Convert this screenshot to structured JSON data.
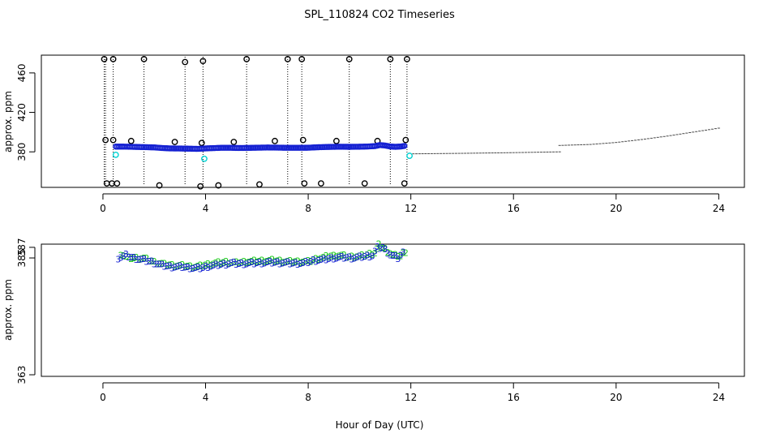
{
  "title": "SPL_110824  CO2 Timeseries",
  "xlabel": "Hour of Day (UTC)",
  "colors": {
    "raw": "#000000",
    "flagged": "#00d2d2",
    "ch1": "#1420d2",
    "ch2": "#18c818",
    "fill": "#4a4a4a"
  },
  "chart_data": [
    {
      "type": "scatter",
      "panel": "top",
      "ylabel": "approx. ppm",
      "xlim": [
        -2.4,
        25
      ],
      "ylim": [
        344,
        478
      ],
      "xticks": [
        0,
        4,
        8,
        12,
        16,
        20,
        24
      ],
      "yticks": [
        380,
        420,
        460
      ],
      "series": [
        {
          "name": "raw-outliers",
          "marker": "circle",
          "color": "#000000",
          "points": [
            [
              0.05,
              474
            ],
            [
              0.1,
              392
            ],
            [
              0.15,
              348
            ],
            [
              0.35,
              348
            ],
            [
              0.4,
              474
            ],
            [
              0.4,
              392
            ],
            [
              0.55,
              348
            ],
            [
              1.1,
              391
            ],
            [
              1.6,
              474
            ],
            [
              2.2,
              346
            ],
            [
              2.8,
              390
            ],
            [
              3.2,
              471
            ],
            [
              3.8,
              345
            ],
            [
              3.85,
              389
            ],
            [
              3.9,
              472
            ],
            [
              4.5,
              346
            ],
            [
              5.1,
              390
            ],
            [
              5.6,
              474
            ],
            [
              6.1,
              347
            ],
            [
              6.7,
              391
            ],
            [
              7.2,
              474
            ],
            [
              7.75,
              474
            ],
            [
              7.8,
              392
            ],
            [
              7.85,
              348
            ],
            [
              8.5,
              348
            ],
            [
              9.1,
              391
            ],
            [
              9.6,
              474
            ],
            [
              10.2,
              348
            ],
            [
              10.7,
              391
            ],
            [
              11.2,
              474
            ],
            [
              11.75,
              348
            ],
            [
              11.8,
              392
            ],
            [
              11.85,
              474
            ]
          ]
        },
        {
          "name": "flagged",
          "marker": "circle",
          "color": "#00d2d2",
          "points": [
            [
              0.5,
              377
            ],
            [
              3.95,
              373
            ],
            [
              11.95,
              376
            ]
          ]
        },
        {
          "name": "co2-running-mean",
          "marker": "circle",
          "color": "#1420d2",
          "points": [
            [
              0.5,
              385.3
            ],
            [
              0.8,
              385.3
            ],
            [
              1.0,
              385.2
            ],
            [
              1.3,
              385.0
            ],
            [
              1.6,
              384.8
            ],
            [
              2.0,
              384.5
            ],
            [
              2.3,
              383.9
            ],
            [
              2.6,
              383.5
            ],
            [
              3.0,
              383.4
            ],
            [
              3.4,
              383.2
            ],
            [
              3.7,
              383.0
            ],
            [
              4.0,
              383.5
            ],
            [
              4.3,
              383.8
            ],
            [
              4.6,
              384.1
            ],
            [
              5.0,
              384.1
            ],
            [
              5.3,
              383.9
            ],
            [
              5.6,
              384.0
            ],
            [
              6.0,
              384.2
            ],
            [
              6.4,
              384.4
            ],
            [
              6.8,
              384.3
            ],
            [
              7.2,
              384.1
            ],
            [
              7.6,
              384.1
            ],
            [
              8.0,
              384.2
            ],
            [
              8.4,
              384.7
            ],
            [
              8.8,
              385.0
            ],
            [
              9.2,
              385.2
            ],
            [
              9.6,
              385.1
            ],
            [
              10.0,
              385.2
            ],
            [
              10.3,
              385.4
            ],
            [
              10.6,
              385.8
            ],
            [
              10.8,
              386.9
            ],
            [
              11.0,
              386.4
            ],
            [
              11.2,
              385.4
            ],
            [
              11.4,
              385.1
            ],
            [
              11.6,
              385.4
            ],
            [
              11.75,
              386.0
            ]
          ]
        },
        {
          "name": "projected",
          "marker": "dash",
          "color": "#4a4a4a",
          "points": [
            [
              12.1,
              378
            ],
            [
              14,
              378.5
            ],
            [
              16,
              379.2
            ],
            [
              17.8,
              380
            ],
            [
              17.8,
              386.5
            ],
            [
              19,
              387.5
            ],
            [
              20,
              389.5
            ],
            [
              21,
              392.5
            ],
            [
              22,
              396
            ],
            [
              23,
              400
            ],
            [
              24,
              404
            ]
          ]
        }
      ],
      "vlines": [
        0.05,
        0.1,
        0.4,
        1.6,
        3.2,
        3.9,
        5.6,
        7.2,
        7.75,
        9.6,
        11.2,
        11.85
      ]
    },
    {
      "type": "scatter",
      "panel": "bottom",
      "ylabel": "approx. ppm",
      "xlim": [
        -2.4,
        25
      ],
      "ylim": [
        362.7,
        387.6
      ],
      "xticks": [
        0,
        4,
        8,
        12,
        16,
        20,
        24
      ],
      "yticks": [
        363,
        385,
        387
      ],
      "ytick_labels": [
        "363",
        "385",
        "387"
      ],
      "series": [
        {
          "name": "2",
          "marker": "2",
          "color": "#18c818",
          "points": [
            [
              0.7,
              385.8
            ],
            [
              1.0,
              385.0
            ],
            [
              1.3,
              385.0
            ],
            [
              1.6,
              384.9
            ],
            [
              2.0,
              384.2
            ],
            [
              2.4,
              383.8
            ],
            [
              2.8,
              383.6
            ],
            [
              3.2,
              383.5
            ],
            [
              3.6,
              383.3
            ],
            [
              4.0,
              383.7
            ],
            [
              4.4,
              384.0
            ],
            [
              4.8,
              384.2
            ],
            [
              5.2,
              384.1
            ],
            [
              5.6,
              384.3
            ],
            [
              6.0,
              384.4
            ],
            [
              6.4,
              384.5
            ],
            [
              6.8,
              384.5
            ],
            [
              7.2,
              384.3
            ],
            [
              7.6,
              384.3
            ],
            [
              8.0,
              384.3
            ],
            [
              8.4,
              384.9
            ],
            [
              8.8,
              385.3
            ],
            [
              9.2,
              385.5
            ],
            [
              9.6,
              385.2
            ],
            [
              10.0,
              385.3
            ],
            [
              10.3,
              385.6
            ],
            [
              10.6,
              386.0
            ],
            [
              10.75,
              387.4
            ],
            [
              11.0,
              386.7
            ],
            [
              11.3,
              385.5
            ],
            [
              11.6,
              385.4
            ],
            [
              11.8,
              386.2
            ]
          ]
        },
        {
          "name": "3",
          "marker": "3",
          "color": "#1420d2",
          "points": [
            [
              0.6,
              385.0
            ],
            [
              0.9,
              385.5
            ],
            [
              1.2,
              385.0
            ],
            [
              1.5,
              384.7
            ],
            [
              1.9,
              384.3
            ],
            [
              2.3,
              383.6
            ],
            [
              2.7,
              383.3
            ],
            [
              3.1,
              383.3
            ],
            [
              3.5,
              383.1
            ],
            [
              3.8,
              383.1
            ],
            [
              4.2,
              383.5
            ],
            [
              4.6,
              383.8
            ],
            [
              5.0,
              384.0
            ],
            [
              5.4,
              383.9
            ],
            [
              5.8,
              384.0
            ],
            [
              6.2,
              384.1
            ],
            [
              6.6,
              384.2
            ],
            [
              7.0,
              384.1
            ],
            [
              7.4,
              384.0
            ],
            [
              7.8,
              384.0
            ],
            [
              8.2,
              384.5
            ],
            [
              8.6,
              384.7
            ],
            [
              9.0,
              385.0
            ],
            [
              9.4,
              385.1
            ],
            [
              9.8,
              385.0
            ],
            [
              10.2,
              385.3
            ],
            [
              10.5,
              385.5
            ],
            [
              10.7,
              386.9
            ],
            [
              10.9,
              387.0
            ],
            [
              11.2,
              385.6
            ],
            [
              11.5,
              385.0
            ],
            [
              11.7,
              386.0
            ]
          ]
        }
      ]
    }
  ]
}
